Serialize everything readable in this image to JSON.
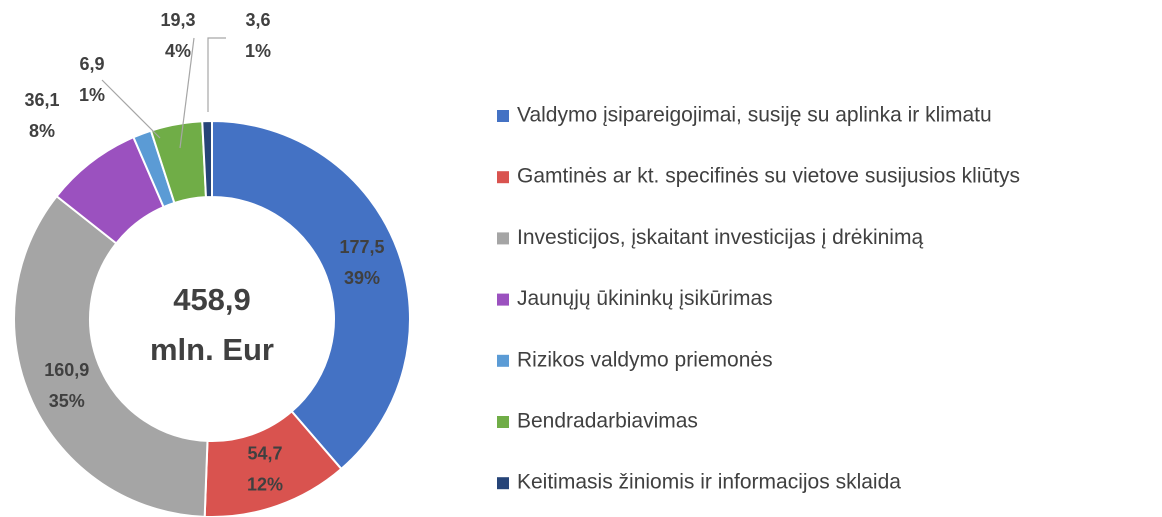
{
  "chart_data": {
    "type": "donut",
    "center_label": [
      "458,9",
      "mln. Eur"
    ],
    "categories": [
      "Valdymo įsipareigojimai, susiję su aplinka ir klimatu",
      "Gamtinės ar kt. specifinės su vietove susijusios kliūtys",
      "Investicijos, įskaitant investicijas į drėkinimą",
      "Jaunųjų ūkininkų įsikūrimas",
      "Rizikos valdymo priemonės",
      "Bendradarbiavimas",
      "Keitimasis žiniomis ir informacijos sklaida"
    ],
    "values": [
      177.5,
      54.7,
      160.9,
      36.1,
      6.9,
      19.3,
      3.6
    ],
    "value_labels": [
      "177,5",
      "54,7",
      "160,9",
      "36,1",
      "6,9",
      "19,3",
      "3,6"
    ],
    "percentages": [
      39,
      12,
      35,
      8,
      1,
      4,
      1
    ],
    "percentage_labels": [
      "39%",
      "12%",
      "35%",
      "8%",
      "1%",
      "4%",
      "1%"
    ],
    "colors": [
      "#4472c4",
      "#d9534f",
      "#a5a5a5",
      "#9b51bf",
      "#5b9bd5",
      "#70ad47",
      "#264478"
    ],
    "legend": "right"
  }
}
